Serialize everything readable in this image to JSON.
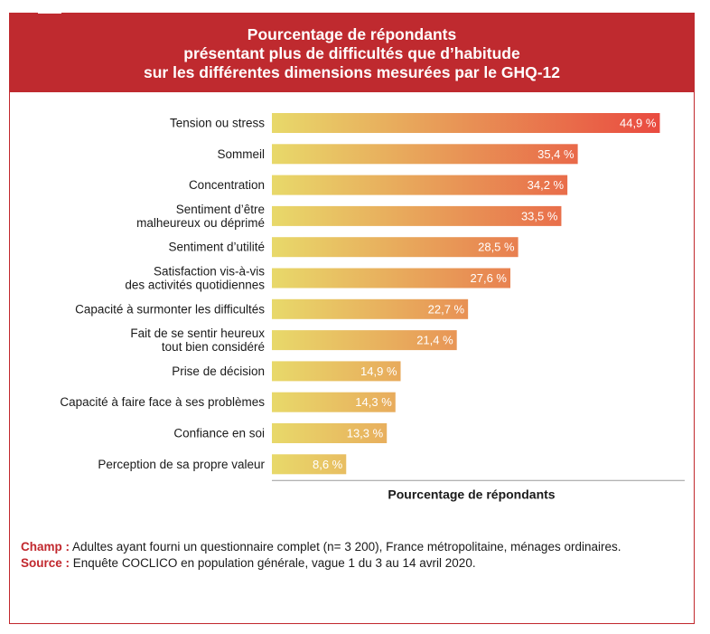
{
  "title": {
    "lines": [
      "Pourcentage de répondants",
      "présentant plus de difficultés que d’habitude",
      "sur les différentes dimensions mesurées par le GHQ-12"
    ]
  },
  "colors": {
    "frame": "#c1272d",
    "title_band": "#bf2a2f",
    "bar_start": "#e8d96a",
    "bar_end": "#e9473f",
    "axis": "#9a9a9a"
  },
  "chart_data": {
    "type": "bar",
    "orientation": "horizontal",
    "categories": [
      [
        "Tension ou stress"
      ],
      [
        "Sommeil"
      ],
      [
        "Concentration"
      ],
      [
        "Sentiment d’être",
        "malheureux ou déprimé"
      ],
      [
        "Sentiment d’utilité"
      ],
      [
        "Satisfaction vis-à-vis",
        "des activités quotidiennes"
      ],
      [
        "Capacité à surmonter les difficultés"
      ],
      [
        "Fait de se sentir heureux",
        "tout bien considéré"
      ],
      [
        "Prise de décision"
      ],
      [
        "Capacité à faire face à ses problèmes"
      ],
      [
        "Confiance en soi"
      ],
      [
        "Perception de sa propre valeur"
      ]
    ],
    "values": [
      44.9,
      35.4,
      34.2,
      33.5,
      28.5,
      27.6,
      22.7,
      21.4,
      14.9,
      14.3,
      13.3,
      8.6
    ],
    "value_labels": [
      "44,9 %",
      "35,4 %",
      "34,2 %",
      "33,5 %",
      "28,5 %",
      "27,6 %",
      "22,7 %",
      "21,4 %",
      "14,9 %",
      "14,3 %",
      "13,3 %",
      "8,6 %"
    ],
    "xlabel": "Pourcentage de répondants",
    "xlim": [
      0,
      46
    ],
    "grid": false,
    "legend": "none"
  },
  "notes": {
    "champ_label": "Champ :",
    "champ_text": " Adultes ayant fourni un questionnaire complet (n= 3 200), France métropolitaine, ménages ordinaires.",
    "source_label": "Source :",
    "source_text": " Enquête COCLICO en population générale, vague 1 du 3 au 14 avril 2020."
  }
}
